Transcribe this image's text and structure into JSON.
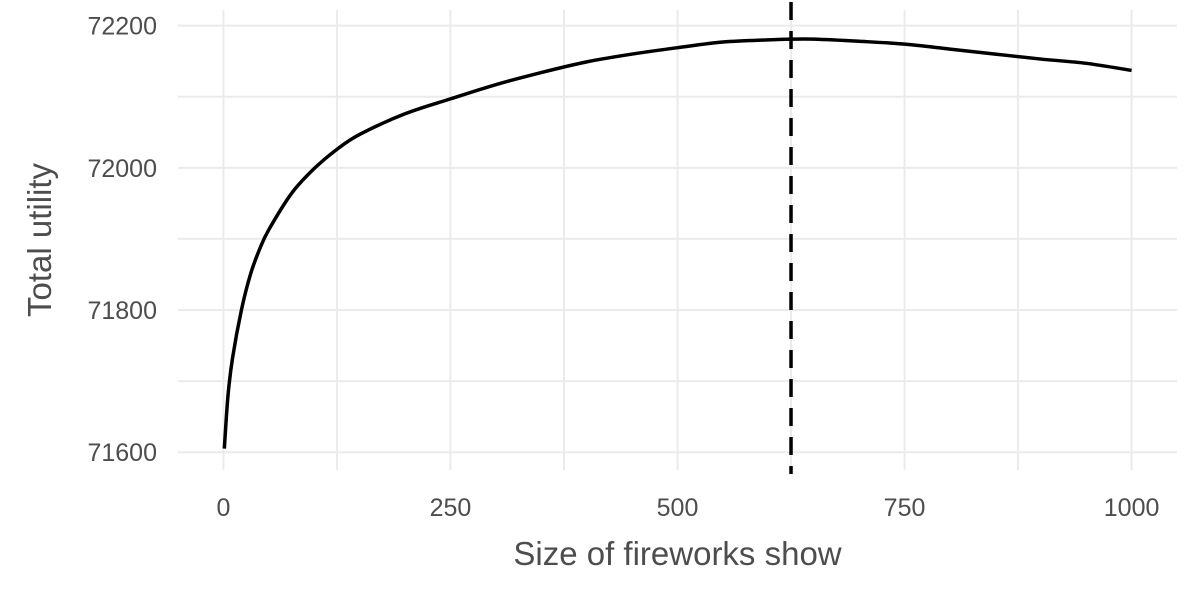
{
  "chart_data": {
    "type": "line",
    "title": "",
    "xlabel": "Size of fireworks show",
    "ylabel": "Total utility",
    "xlim": [
      -50,
      1050
    ],
    "ylim": [
      71575,
      72222
    ],
    "x_ticks": [
      0,
      250,
      500,
      750,
      1000
    ],
    "y_ticks": [
      71600,
      71800,
      72000,
      72200
    ],
    "x_tick_labels": [
      "0",
      "250",
      "500",
      "750",
      "1000"
    ],
    "y_tick_labels": [
      "71600",
      "71800",
      "72000",
      "72200"
    ],
    "grid": true,
    "legend": "none",
    "series": [
      {
        "color": "#000000",
        "x": [
          1,
          5,
          10,
          20,
          30,
          40,
          50,
          75,
          100,
          125,
          150,
          200,
          250,
          300,
          350,
          400,
          450,
          500,
          550,
          600,
          625,
          650,
          700,
          750,
          800,
          850,
          900,
          950,
          1000
        ],
        "y": [
          71605,
          71679,
          71732,
          71801,
          71851,
          71886,
          71913,
          71964,
          71999,
          72026,
          72047,
          72076,
          72097,
          72117,
          72134,
          72149,
          72160,
          72169,
          72177,
          72180,
          72181,
          72181,
          72178,
          72174,
          72167,
          72160,
          72153,
          72147,
          72137
        ]
      }
    ],
    "vertical_line": {
      "x": 625,
      "style": "dashed",
      "color": "#000000"
    }
  }
}
